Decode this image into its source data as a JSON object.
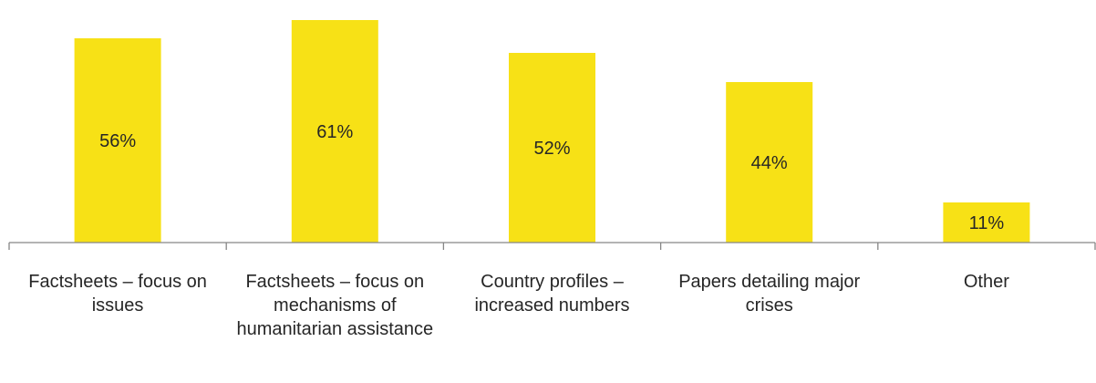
{
  "chart_data": {
    "type": "bar",
    "categories": [
      "Factsheets – focus on issues",
      "Factsheets – focus on mechanisms of humanitarian assistance",
      "Country profiles – increased numbers",
      "Papers detailing major crises",
      "Other"
    ],
    "values": [
      56,
      61,
      52,
      44,
      11
    ],
    "value_labels": [
      "56%",
      "61%",
      "52%",
      "44%",
      "11%"
    ],
    "bar_color": "#f7e116",
    "axis_color": "#868686",
    "ylim": [
      0,
      65
    ],
    "grid": false,
    "legend": "none"
  }
}
